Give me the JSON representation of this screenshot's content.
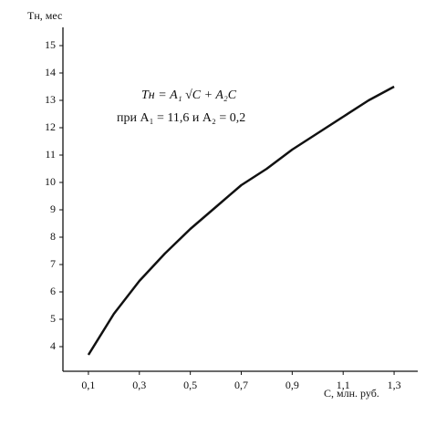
{
  "chart_data": {
    "type": "line",
    "y_label": "Tн, мес",
    "x_label": "C, млн. руб.",
    "annotations": [
      "Tн = A₁ √C + A₂C",
      "при A₁ = 11,6 и A₂ = 0,2"
    ],
    "x": [
      0.1,
      0.2,
      0.3,
      0.4,
      0.5,
      0.6,
      0.7,
      0.8,
      0.9,
      1.0,
      1.1,
      1.2,
      1.3
    ],
    "series": [
      {
        "color": "#111111",
        "values": [
          3.7,
          5.2,
          6.4,
          7.4,
          8.3,
          9.1,
          9.9,
          10.5,
          11.2,
          11.8,
          12.4,
          13.0,
          13.5
        ]
      }
    ],
    "xlim": [
      0,
      1.4
    ],
    "ylim": [
      3,
      15.5
    ],
    "xticks": [
      {
        "value": 0.1,
        "label": "0,1"
      },
      {
        "value": 0.3,
        "label": "0,3"
      },
      {
        "value": 0.5,
        "label": "0,5"
      },
      {
        "value": 0.7,
        "label": "0,7"
      },
      {
        "value": 0.9,
        "label": "0,9"
      },
      {
        "value": 1.1,
        "label": "1,1"
      },
      {
        "value": 1.3,
        "label": "1,3"
      }
    ],
    "yticks": [
      4,
      5,
      6,
      7,
      8,
      9,
      10,
      11,
      12,
      13,
      14,
      15
    ],
    "grid": false
  }
}
